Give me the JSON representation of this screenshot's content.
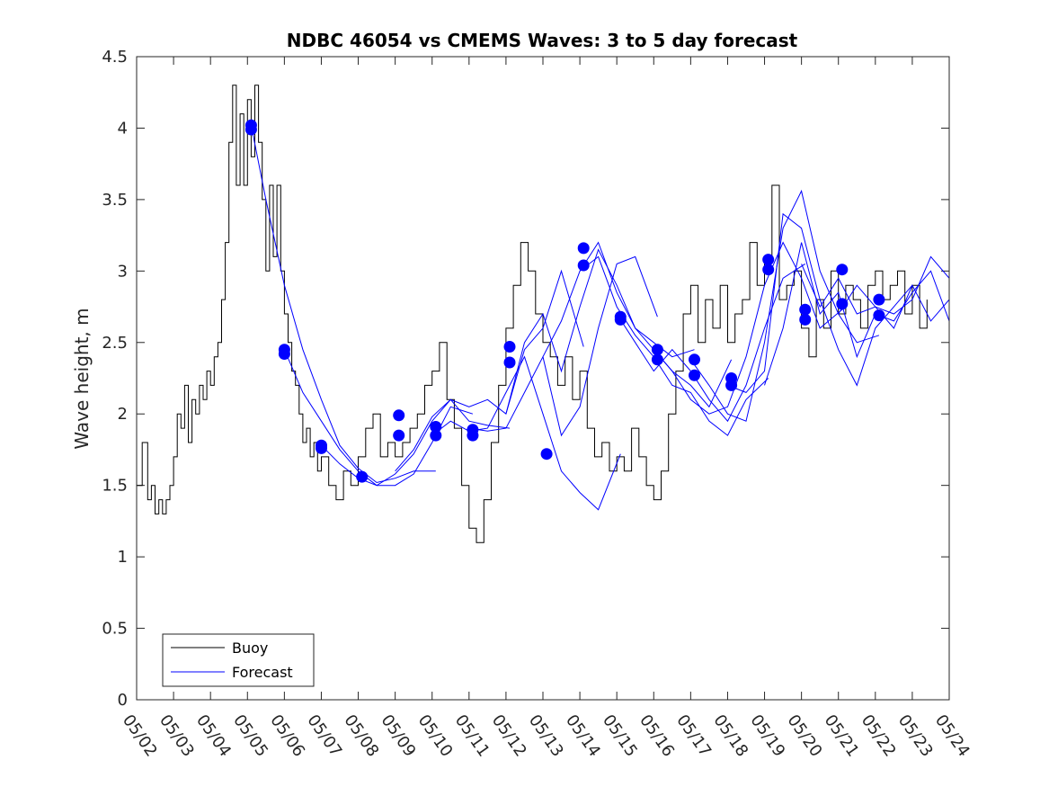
{
  "chart_data": {
    "type": "line",
    "title": "NDBC 46054 vs CMEMS Waves: 3 to 5 day forecast",
    "xlabel": "",
    "ylabel": "Wave height, m",
    "ylim": [
      0,
      4.5
    ],
    "yticks": [
      "0",
      "0.5",
      "1",
      "1.5",
      "2",
      "2.5",
      "3",
      "3.5",
      "4",
      "4.5"
    ],
    "x_ticks": [
      "05/02",
      "05/03",
      "05/04",
      "05/05",
      "05/06",
      "05/07",
      "05/08",
      "05/09",
      "05/10",
      "05/11",
      "05/12",
      "05/13",
      "05/14",
      "05/15",
      "05/16",
      "05/17",
      "05/18",
      "05/19",
      "05/20",
      "05/21",
      "05/22",
      "05/23",
      "05/24"
    ],
    "xlim_days": [
      0,
      22
    ],
    "grid": false,
    "legend": {
      "placement": "bottom-left",
      "entries": [
        "Buoy",
        "Forecast"
      ]
    },
    "colors": {
      "buoy": "#000000",
      "forecast": "#0000ff"
    },
    "series": [
      {
        "name": "Buoy",
        "x_days": [
          0,
          0.15,
          0.3,
          0.4,
          0.5,
          0.6,
          0.7,
          0.8,
          0.9,
          1.0,
          1.1,
          1.2,
          1.3,
          1.4,
          1.5,
          1.6,
          1.7,
          1.8,
          1.9,
          2.0,
          2.1,
          2.2,
          2.3,
          2.4,
          2.5,
          2.6,
          2.7,
          2.8,
          2.9,
          3.0,
          3.1,
          3.2,
          3.3,
          3.4,
          3.5,
          3.6,
          3.7,
          3.8,
          3.9,
          4.0,
          4.1,
          4.2,
          4.3,
          4.4,
          4.5,
          4.6,
          4.7,
          4.8,
          4.9,
          5.0,
          5.2,
          5.4,
          5.6,
          5.8,
          6.0,
          6.2,
          6.4,
          6.6,
          6.8,
          7.0,
          7.2,
          7.4,
          7.6,
          7.8,
          8.0,
          8.2,
          8.4,
          8.6,
          8.8,
          9.0,
          9.2,
          9.4,
          9.6,
          9.8,
          10.0,
          10.2,
          10.4,
          10.6,
          10.8,
          11.0,
          11.2,
          11.4,
          11.6,
          11.8,
          12.0,
          12.2,
          12.4,
          12.6,
          12.8,
          13.0,
          13.2,
          13.4,
          13.6,
          13.8,
          14.0,
          14.2,
          14.4,
          14.6,
          14.8,
          15.0,
          15.2,
          15.4,
          15.6,
          15.8,
          16.0,
          16.2,
          16.4,
          16.6,
          16.8,
          17.0,
          17.2,
          17.4,
          17.6,
          17.8,
          18.0,
          18.2,
          18.4,
          18.6,
          18.8,
          19.0,
          19.2,
          19.4,
          19.6,
          19.8,
          20.0,
          20.2,
          20.4,
          20.6,
          20.8,
          21.0,
          21.2,
          21.4
        ],
        "values": [
          1.5,
          1.8,
          1.4,
          1.5,
          1.3,
          1.4,
          1.3,
          1.4,
          1.5,
          1.7,
          2.0,
          1.9,
          2.2,
          1.8,
          2.1,
          2.0,
          2.2,
          2.1,
          2.3,
          2.2,
          2.4,
          2.5,
          2.8,
          3.2,
          3.9,
          4.3,
          3.6,
          4.1,
          3.6,
          4.2,
          3.8,
          4.3,
          3.9,
          3.5,
          3.0,
          3.6,
          3.1,
          3.6,
          3.0,
          2.7,
          2.5,
          2.3,
          2.2,
          2.0,
          1.8,
          1.9,
          1.7,
          1.8,
          1.6,
          1.7,
          1.5,
          1.4,
          1.6,
          1.5,
          1.7,
          1.9,
          2.0,
          1.7,
          1.8,
          1.7,
          1.8,
          1.9,
          2.0,
          2.2,
          2.3,
          2.5,
          2.1,
          1.9,
          1.5,
          1.2,
          1.1,
          1.4,
          1.8,
          2.2,
          2.6,
          2.9,
          3.2,
          3.0,
          2.7,
          2.5,
          2.4,
          2.2,
          2.4,
          2.1,
          2.3,
          1.9,
          1.7,
          1.8,
          1.6,
          1.7,
          1.6,
          1.9,
          1.7,
          1.5,
          1.4,
          1.6,
          2.0,
          2.3,
          2.7,
          2.9,
          2.5,
          2.8,
          2.6,
          2.9,
          2.5,
          2.7,
          2.8,
          3.2,
          2.9,
          3.1,
          3.6,
          2.8,
          2.9,
          3.0,
          2.6,
          2.4,
          2.8,
          2.6,
          3.0,
          2.7,
          2.9,
          2.8,
          2.6,
          2.9,
          3.0,
          2.8,
          2.9,
          3.0,
          2.7,
          2.9,
          2.6,
          2.8
        ]
      },
      {
        "name": "Forecast",
        "segments": [
          {
            "x_days": [
              3.1,
              3.5,
              4.0,
              4.5,
              5.0,
              5.5,
              6.0,
              6.5,
              7.0,
              7.5,
              8.1
            ],
            "values": [
              4.02,
              3.5,
              2.9,
              2.45,
              2.1,
              1.78,
              1.62,
              1.52,
              1.55,
              1.6,
              1.6
            ]
          },
          {
            "x_days": [
              4.0,
              4.5,
              5.0,
              5.5,
              6.0,
              6.5,
              7.0,
              7.5,
              8.0,
              8.5,
              9.1
            ],
            "values": [
              2.45,
              2.15,
              1.95,
              1.75,
              1.6,
              1.5,
              1.5,
              1.58,
              1.8,
              2.05,
              2.0
            ]
          },
          {
            "x_days": [
              5.0,
              5.5,
              6.0,
              6.5,
              7.0,
              7.5,
              8.0,
              8.5,
              9.0,
              9.5,
              10.1
            ],
            "values": [
              1.78,
              1.65,
              1.55,
              1.5,
              1.58,
              1.72,
              1.95,
              2.1,
              1.95,
              1.92,
              1.9
            ]
          },
          {
            "x_days": [
              7.0,
              7.5,
              8.0,
              8.5,
              9.0,
              9.5,
              10.0,
              10.5,
              11.0,
              11.5,
              12.1
            ],
            "values": [
              1.6,
              1.75,
              1.98,
              2.1,
              2.05,
              2.1,
              2.0,
              2.45,
              2.6,
              3.0,
              2.47
            ]
          },
          {
            "x_days": [
              8.0,
              8.5,
              9.0,
              9.5,
              10.0,
              10.5,
              11.0,
              11.5,
              12.0,
              12.5,
              13.1
            ],
            "values": [
              1.85,
              1.95,
              1.88,
              1.9,
              2.15,
              2.4,
              2.0,
              1.6,
              1.45,
              1.33,
              1.72
            ]
          },
          {
            "x_days": [
              9.0,
              9.5,
              10.0,
              10.5,
              11.0,
              11.5,
              12.0,
              12.5,
              13.0,
              13.5,
              14.1
            ],
            "values": [
              1.9,
              1.88,
              1.9,
              2.15,
              2.4,
              1.85,
              2.05,
              2.6,
              3.05,
              3.1,
              2.68
            ]
          },
          {
            "x_days": [
              10.0,
              10.5,
              11.0,
              11.5,
              12.0,
              12.5,
              13.0,
              13.5,
              14.0,
              14.5,
              15.1
            ],
            "values": [
              2.0,
              2.5,
              2.7,
              2.3,
              2.75,
              3.15,
              2.9,
              2.6,
              2.5,
              2.4,
              2.45
            ]
          },
          {
            "x_days": [
              11.0,
              11.5,
              12.0,
              12.5,
              13.0,
              13.5,
              14.0,
              14.5,
              15.0,
              15.5,
              16.1
            ],
            "values": [
              2.4,
              2.65,
              3.0,
              3.2,
              2.85,
              2.6,
              2.45,
              2.3,
              2.2,
              2.05,
              2.38
            ]
          },
          {
            "x_days": [
              12.0,
              12.5,
              13.0,
              13.5,
              14.0,
              14.5,
              15.0,
              15.5,
              16.0,
              16.5,
              17.1
            ],
            "values": [
              3.0,
              3.1,
              2.75,
              2.55,
              2.4,
              2.2,
              2.15,
              1.95,
              1.85,
              2.1,
              2.25
            ]
          },
          {
            "x_days": [
              13.0,
              13.5,
              14.0,
              14.5,
              15.0,
              15.5,
              16.0,
              16.5,
              17.0,
              17.5,
              18.1
            ],
            "values": [
              2.7,
              2.5,
              2.3,
              2.45,
              2.3,
              2.1,
              1.95,
              2.2,
              2.6,
              2.95,
              3.05
            ]
          },
          {
            "x_days": [
              14.0,
              14.5,
              15.0,
              15.5,
              16.0,
              16.5,
              17.0,
              17.5,
              18.0,
              18.5,
              19.1
            ],
            "values": [
              2.45,
              2.3,
              2.1,
              2.0,
              2.05,
              2.4,
              2.9,
              3.2,
              2.95,
              2.6,
              2.73
            ]
          },
          {
            "x_days": [
              15.0,
              15.5,
              16.0,
              16.5,
              17.0,
              17.5,
              18.0,
              18.5,
              19.0,
              19.5,
              20.1
            ],
            "values": [
              2.38,
              2.2,
              2.0,
              1.95,
              2.5,
              3.3,
              3.56,
              3.0,
              2.7,
              2.5,
              2.55
            ]
          },
          {
            "x_days": [
              16.0,
              16.5,
              17.0,
              17.5,
              18.0,
              18.5,
              19.0,
              19.5,
              20.0,
              20.5,
              21.0
            ],
            "values": [
              2.2,
              2.15,
              2.3,
              3.4,
              3.3,
              2.8,
              2.45,
              2.2,
              2.6,
              2.75,
              2.9
            ]
          },
          {
            "x_days": [
              17.0,
              17.5,
              18.0,
              18.5,
              19.0,
              19.5,
              20.0,
              20.5,
              21.0,
              21.5,
              22.0
            ],
            "values": [
              2.2,
              2.6,
              3.2,
              2.7,
              2.85,
              2.4,
              2.7,
              2.65,
              2.85,
              3.0,
              2.65
            ]
          },
          {
            "x_days": [
              18.0,
              18.5,
              19.0,
              19.5,
              20.0,
              20.5,
              21.0,
              21.5,
              22.0
            ],
            "values": [
              3.05,
              2.75,
              2.95,
              2.7,
              2.75,
              2.7,
              2.8,
              3.1,
              2.95
            ]
          },
          {
            "x_days": [
              19.0,
              19.5,
              20.0,
              20.5,
              21.0,
              21.5,
              22.0
            ],
            "values": [
              2.7,
              2.9,
              2.75,
              2.6,
              2.9,
              2.65,
              2.8
            ]
          }
        ],
        "markers": {
          "x_days": [
            3.1,
            3.1,
            4.0,
            4.0,
            5.0,
            5.0,
            6.1,
            7.1,
            7.1,
            8.1,
            8.1,
            9.1,
            9.1,
            10.1,
            10.1,
            11.1,
            12.1,
            12.1,
            13.1,
            13.1,
            14.1,
            14.1,
            15.1,
            15.1,
            16.1,
            16.1,
            17.1,
            17.1,
            18.1,
            18.1,
            19.1,
            19.1,
            20.1,
            20.1
          ],
          "values": [
            4.02,
            3.99,
            2.45,
            2.42,
            1.78,
            1.76,
            1.56,
            1.99,
            1.85,
            1.91,
            1.85,
            1.89,
            1.85,
            2.47,
            2.36,
            1.72,
            3.16,
            3.04,
            2.68,
            2.66,
            2.45,
            2.38,
            2.38,
            2.27,
            2.25,
            2.2,
            3.08,
            3.01,
            2.73,
            2.66,
            3.01,
            2.77,
            2.8,
            2.69
          ]
        }
      }
    ]
  }
}
